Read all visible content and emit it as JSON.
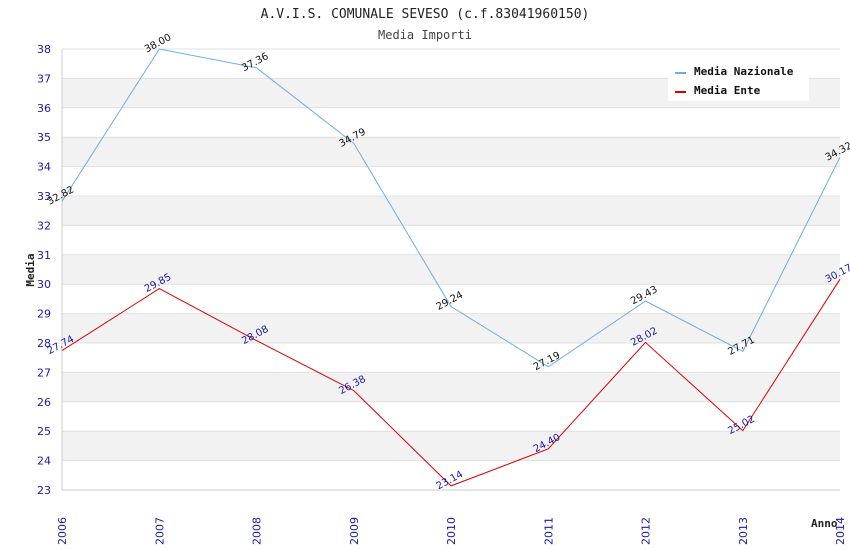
{
  "header": {
    "title": "A.V.I.S. COMUNALE SEVESO (c.f.83041960150)",
    "subtitle": "Media Importi"
  },
  "chart_data": {
    "type": "line",
    "title": "A.V.I.S. COMUNALE SEVESO (c.f.83041960150)",
    "subtitle": "Media Importi",
    "xlabel": "Anno",
    "ylabel": "Media",
    "categories": [
      "2006",
      "2007",
      "2008",
      "2009",
      "2010",
      "2011",
      "2012",
      "2013",
      "2014"
    ],
    "ylim": [
      23,
      38
    ],
    "yticks": [
      "23",
      "24",
      "25",
      "26",
      "27",
      "28",
      "29",
      "30",
      "31",
      "32",
      "33",
      "34",
      "35",
      "36",
      "37",
      "38"
    ],
    "grid": "horizontal bands",
    "legend_position": "top-right",
    "series": [
      {
        "name": "Media Nazionale",
        "color": "#6aaee6",
        "values": [
          32.82,
          38.0,
          37.36,
          34.79,
          29.24,
          27.19,
          29.43,
          27.71,
          34.32
        ],
        "labels": [
          "32.82",
          "38.00",
          "37.36",
          "34.79",
          "29.24",
          "27.19",
          "29.43",
          "27.71",
          "34.32"
        ]
      },
      {
        "name": "Media Ente",
        "color": "#dd0000",
        "values": [
          27.74,
          29.85,
          28.08,
          26.38,
          23.14,
          24.4,
          28.02,
          25.02,
          30.17
        ],
        "labels": [
          "27.74",
          "29.85",
          "28.08",
          "26.38",
          "23.14",
          "24.40",
          "28.02",
          "25.02",
          "30.17"
        ]
      }
    ]
  }
}
